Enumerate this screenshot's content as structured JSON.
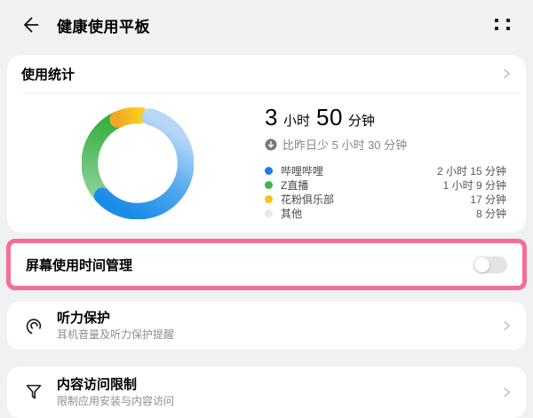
{
  "header": {
    "title": "健康使用平板"
  },
  "usage_card": {
    "title": "使用统计",
    "total": {
      "hours": "3",
      "hours_unit": "小时",
      "minutes": "50",
      "minutes_unit": "分钟"
    },
    "comparison": "比昨日少 5 小时 30 分钟",
    "legend": [
      {
        "label": "哔哩哔哩",
        "value": "2 小时 15 分钟",
        "color": "#1B7DE8"
      },
      {
        "label": "Z直播",
        "value": "1 小时 9 分钟",
        "color": "#3FB546"
      },
      {
        "label": "花粉俱乐部",
        "value": "17 分钟",
        "color": "#F7C41D"
      },
      {
        "label": "其他",
        "value": "8 分钟",
        "color": "#E9E9EB"
      }
    ]
  },
  "chart_data": {
    "type": "pie",
    "donut": true,
    "title": "使用统计",
    "categories": [
      "哔哩哔哩",
      "Z直播",
      "花粉俱乐部",
      "其他"
    ],
    "values": [
      135,
      69,
      17,
      8
    ],
    "unit": "minutes",
    "value_labels": [
      "2 小时 15 分钟",
      "1 小时 9 分钟",
      "17 分钟",
      "8 分钟"
    ],
    "total_label": "3 小时 50 分钟",
    "colors": [
      "#1E8FE8",
      "#3BB143",
      "#F7C41F",
      "#F1F1F3"
    ],
    "start_angle_deg": 15,
    "legend_position": "right"
  },
  "screen_time": {
    "label": "屏幕使用时间管理",
    "toggle_state": "off",
    "highlight_color": "#F56E96"
  },
  "hearing": {
    "title": "听力保护",
    "subtitle": "耳机音量及听力保护提醒"
  },
  "content_restriction": {
    "title": "内容访问限制",
    "subtitle": "限制应用安装与内容访问"
  }
}
